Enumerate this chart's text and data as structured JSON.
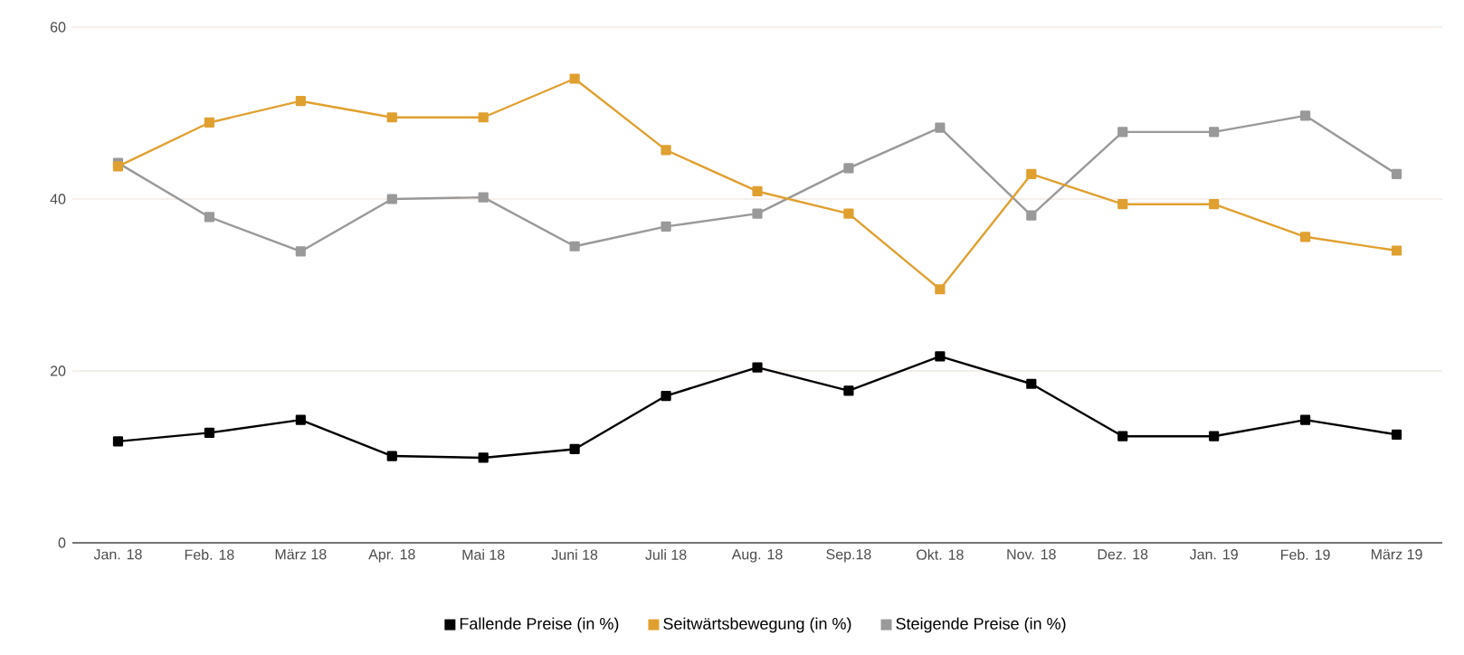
{
  "chart_data": {
    "type": "line",
    "categories": [
      "Jan. 18",
      "Feb. 18",
      "März 18",
      "Apr. 18",
      "Mai 18",
      "Juni 18",
      "Juli 18",
      "Aug. 18",
      "Sep.18",
      "Okt. 18",
      "Nov. 18",
      "Dez. 18",
      "Jan. 19",
      "Feb. 19",
      "März 19"
    ],
    "series": [
      {
        "name": "Fallende Preise (in %)",
        "color": "#000000",
        "values": [
          11.8,
          12.8,
          14.3,
          10.1,
          9.9,
          10.9,
          17.1,
          20.4,
          17.7,
          21.7,
          18.5,
          12.4,
          12.4,
          14.3,
          12.6
        ]
      },
      {
        "name": "Seitwärtsbewegung (in %)",
        "color": "#e0a030",
        "values": [
          43.8,
          48.9,
          51.4,
          49.5,
          49.5,
          54,
          45.7,
          40.9,
          38.3,
          29.5,
          42.9,
          39.4,
          39.4,
          35.6,
          34
        ]
      },
      {
        "name": "Steigende Preise (in %)",
        "color": "#999999",
        "values": [
          44.2,
          37.9,
          33.9,
          40,
          40.2,
          34.5,
          36.8,
          38.3,
          43.6,
          48.3,
          38.1,
          47.8,
          47.8,
          49.7,
          42.9
        ]
      }
    ],
    "ylim": [
      0,
      60
    ],
    "yticks": [
      0,
      20,
      40,
      60
    ],
    "grid": "y",
    "legend": "bottom",
    "marker": "square",
    "line_style": "solid"
  }
}
